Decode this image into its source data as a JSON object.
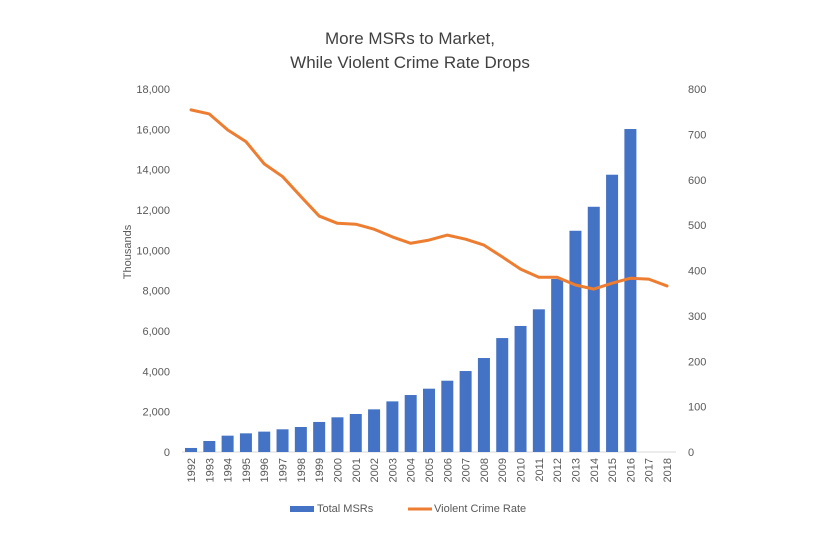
{
  "chart_data": {
    "type": "bar+line",
    "title_lines": [
      "More MSRs to Market,",
      "While Violent Crime Rate Drops"
    ],
    "ylabel": "Thousands",
    "categories": [
      "1992",
      "1993",
      "1994",
      "1995",
      "1996",
      "1997",
      "1998",
      "1999",
      "2000",
      "2001",
      "2002",
      "2003",
      "2004",
      "2005",
      "2006",
      "2007",
      "2008",
      "2009",
      "2010",
      "2011",
      "2012",
      "2013",
      "2014",
      "2015",
      "2016",
      "2017",
      "2018"
    ],
    "ylim_left": [
      0,
      18000
    ],
    "yticks_left": [
      "0",
      "2,000",
      "4,000",
      "6,000",
      "8,000",
      "10,000",
      "12,000",
      "14,000",
      "16,000",
      "18,000"
    ],
    "ylim_right": [
      0,
      800
    ],
    "yticks_right": [
      "0",
      "100",
      "200",
      "300",
      "400",
      "500",
      "600",
      "700",
      "800"
    ],
    "grid": false,
    "legend_position": "bottom",
    "series": [
      {
        "name": "Total MSRs",
        "type": "bar",
        "axis": "left",
        "color": "#4472C4",
        "values": [
          200,
          545,
          810,
          925,
          1010,
          1125,
          1240,
          1490,
          1720,
          1885,
          2115,
          2510,
          2825,
          3140,
          3535,
          4015,
          4660,
          5650,
          6250,
          7075,
          8580,
          10970,
          12160,
          13750,
          16015,
          null,
          null
        ]
      },
      {
        "name": "Violent Crime Rate",
        "type": "line",
        "axis": "right",
        "color": "#ED7D31",
        "values": [
          754,
          745,
          710,
          684,
          635,
          607,
          563,
          520,
          504,
          502,
          491,
          474,
          460,
          467,
          478,
          469,
          456,
          430,
          403,
          385,
          385,
          368,
          359,
          372,
          383,
          381,
          366
        ]
      }
    ]
  }
}
